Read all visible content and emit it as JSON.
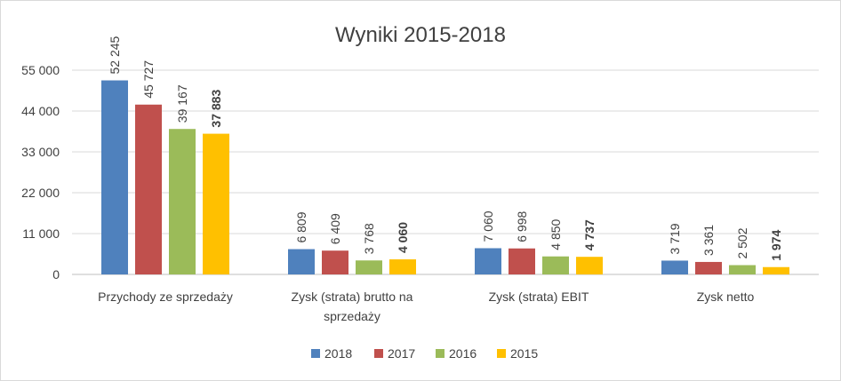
{
  "chart_data": {
    "type": "bar",
    "title": "Wyniki 2015-2018",
    "categories": [
      [
        "Przychody ze sprzedaży"
      ],
      [
        "Zysk (strata) brutto na",
        "sprzedaży"
      ],
      [
        "Zysk (strata) EBIT"
      ],
      [
        "Zysk netto"
      ]
    ],
    "series": [
      {
        "name": "2018",
        "color": "#4f81bd",
        "values": [
          52245,
          6809,
          7060,
          3719
        ],
        "labels": [
          "52 245",
          "6 809",
          "7 060",
          "3 719"
        ]
      },
      {
        "name": "2017",
        "color": "#c0504d",
        "values": [
          45727,
          6409,
          6998,
          3361
        ],
        "labels": [
          "45 727",
          "6 409",
          "6 998",
          "3 361"
        ]
      },
      {
        "name": "2016",
        "color": "#9bbb59",
        "values": [
          39167,
          3768,
          4850,
          2502
        ],
        "labels": [
          "39 167",
          "3 768",
          "4 850",
          "2 502"
        ]
      },
      {
        "name": "2015",
        "color": "#ffc000",
        "values": [
          37883,
          4060,
          4737,
          1974
        ],
        "labels": [
          "37 883",
          "4 060",
          "4 737",
          "1 974"
        ]
      }
    ],
    "ylim": [
      0,
      55000
    ],
    "yticks": [
      0,
      11000,
      22000,
      33000,
      44000,
      55000
    ],
    "ytick_labels": [
      "0",
      "11 000",
      "22 000",
      "33 000",
      "44 000",
      "55 000"
    ],
    "grid": true,
    "legend": "bottom",
    "xlabel": "",
    "ylabel": ""
  }
}
